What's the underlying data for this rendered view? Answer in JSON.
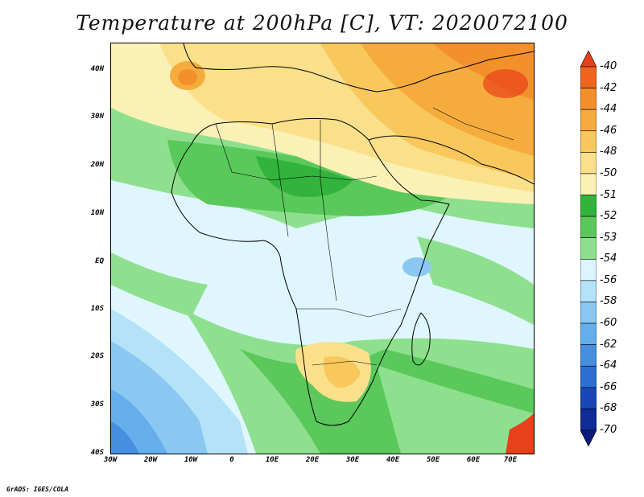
{
  "title": "Temperature at 200hPa [C], VT: 2020072100",
  "footer": "GrADS: IGES/COLA",
  "y_axis_labels": [
    "40N",
    "30N",
    "20N",
    "10N",
    "EQ",
    "10S",
    "20S",
    "30S",
    "40S"
  ],
  "x_axis_labels": [
    "30W",
    "20W",
    "10W",
    "0",
    "10E",
    "20E",
    "30E",
    "40E",
    "50E",
    "60E",
    "70E"
  ],
  "colorbar": {
    "labels": [
      "-40",
      "-42",
      "-44",
      "-46",
      "-48",
      "-50",
      "-51",
      "-52",
      "-53",
      "-54",
      "-56",
      "-58",
      "-60",
      "-62",
      "-64",
      "-66",
      "-68",
      "-70"
    ],
    "colors": [
      "#e8401a",
      "#f0641e",
      "#f4902a",
      "#f5ac3c",
      "#f8c85c",
      "#fae08a",
      "#fbf0b6",
      "#32b43c",
      "#5ac85a",
      "#8ee08e",
      "#dcf6ff",
      "#b4e2f8",
      "#8ac8f2",
      "#64aeec",
      "#468ee0",
      "#2c6ed2",
      "#1846b4",
      "#102c96",
      "#0a1a78"
    ]
  },
  "field_colors": {
    "warm_orange": "#f4902a",
    "orange": "#f5ac3c",
    "light_orange": "#f8c85c",
    "yellow": "#fae08a",
    "pale_yellow": "#fbf0b6",
    "dark_green": "#32b43c",
    "green": "#5ac85a",
    "light_green": "#8ee08e",
    "pale_blue": "#dcf6ff",
    "light_blue": "#b4e2f8",
    "blue": "#8ac8f2",
    "mid_blue": "#64aeec",
    "deep_blue": "#468ee0",
    "red": "#e8401a"
  }
}
